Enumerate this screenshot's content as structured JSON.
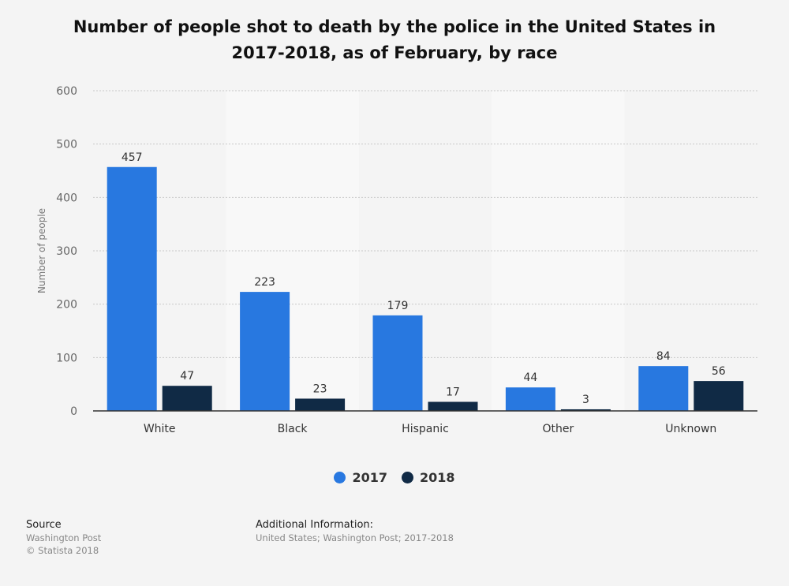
{
  "chart_data": {
    "type": "bar",
    "title": "Number of people shot to death by the police in the United States in 2017-2018, as of February, by race",
    "categories": [
      "White",
      "Black",
      "Hispanic",
      "Other",
      "Unknown"
    ],
    "series": [
      {
        "name": "2017",
        "values": [
          457,
          223,
          179,
          44,
          84
        ],
        "color": "#2878e0"
      },
      {
        "name": "2018",
        "values": [
          47,
          23,
          17,
          3,
          56
        ],
        "color": "#102a45"
      }
    ],
    "xlabel": "",
    "ylabel": "Number of people",
    "ylim": [
      0,
      600
    ],
    "yticks": [
      0,
      100,
      200,
      300,
      400,
      500,
      600
    ],
    "grid": true,
    "legend_position": "bottom-center"
  },
  "legend": {
    "items": [
      {
        "label": "2017",
        "color": "#2878e0"
      },
      {
        "label": "2018",
        "color": "#102a45"
      }
    ]
  },
  "footer": {
    "source_heading": "Source",
    "source_name": "Washington Post",
    "copyright": "© Statista 2018",
    "additional_heading": "Additional Information:",
    "additional_text": "United States; Washington Post; 2017-2018"
  },
  "colors": {
    "background": "#f4f4f4",
    "band": "#f8f8f8",
    "axis": "#333333",
    "grid": "#c8c8c8"
  }
}
